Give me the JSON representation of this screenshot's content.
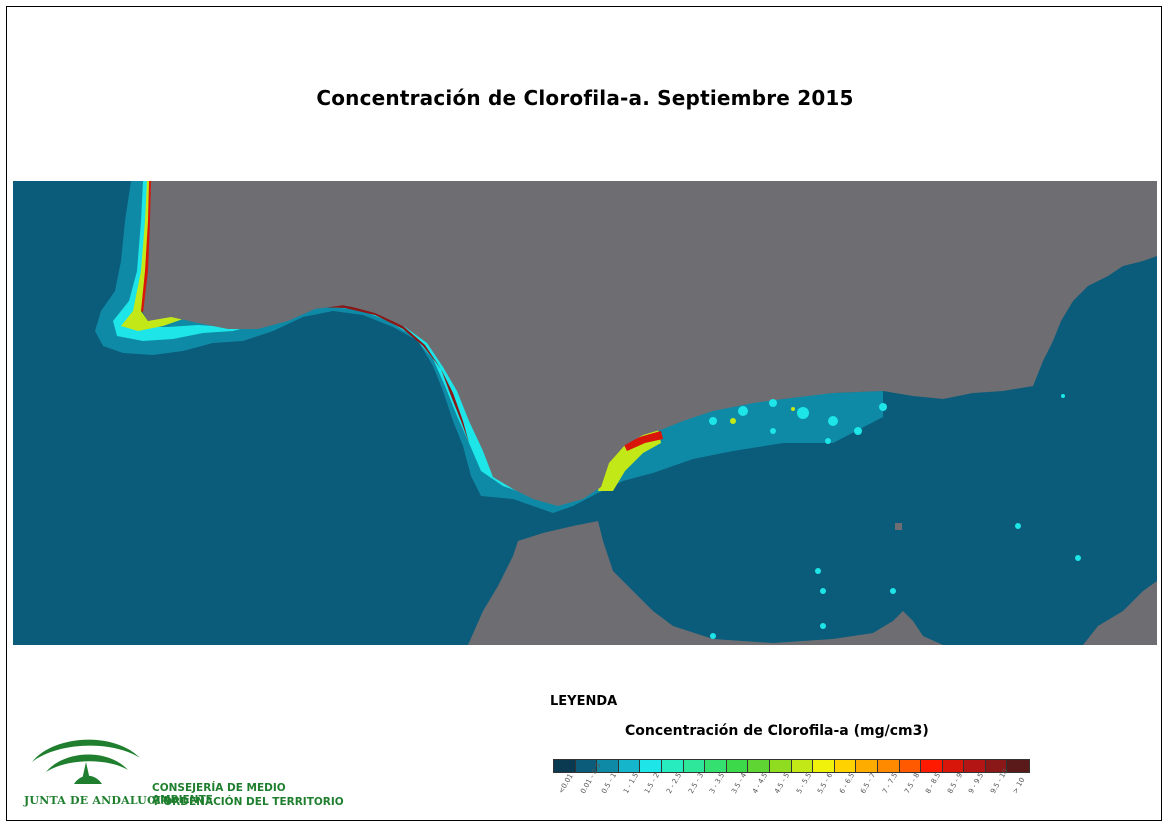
{
  "title": "Concentración de Clorofila-a. Septiembre 2015",
  "legend": {
    "heading": "LEYENDA",
    "subtitle": "Concentración de Clorofila-a (mg/cm3)",
    "classes": [
      {
        "label": "<0.01",
        "color": "#0a3a52"
      },
      {
        "label": "0.01 - 0.5",
        "color": "#0b5b7a"
      },
      {
        "label": "0.5 - 1",
        "color": "#0f8aa6"
      },
      {
        "label": "1 - 1.5",
        "color": "#15b5cc"
      },
      {
        "label": "1.5 - 2",
        "color": "#1de5e8"
      },
      {
        "label": "2 - 2.5",
        "color": "#27ecc0"
      },
      {
        "label": "2.5 - 3",
        "color": "#2ee79a"
      },
      {
        "label": "3 - 3.5",
        "color": "#34e070"
      },
      {
        "label": "3.5 - 4",
        "color": "#3cd94a"
      },
      {
        "label": "4 - 4.5",
        "color": "#5ed532"
      },
      {
        "label": "4.5 - 5",
        "color": "#8fdc20"
      },
      {
        "label": "5 - 5.5",
        "color": "#c2e818"
      },
      {
        "label": "5.5 - 6",
        "color": "#f1f20c"
      },
      {
        "label": "6 - 6.5",
        "color": "#ffd200"
      },
      {
        "label": "6.5 - 7",
        "color": "#ffac00"
      },
      {
        "label": "7 - 7.5",
        "color": "#ff8a00"
      },
      {
        "label": "7.5 - 8",
        "color": "#ff5a00"
      },
      {
        "label": "8 - 8.5",
        "color": "#ff1a00"
      },
      {
        "label": "8.5 - 9",
        "color": "#d8160a"
      },
      {
        "label": "9 - 9.5",
        "color": "#b31414"
      },
      {
        "label": "9.5 - 10",
        "color": "#8b1818"
      },
      {
        "label": "> 10",
        "color": "#5a1a1a"
      }
    ]
  },
  "logo": {
    "organization": "JUNTA DE ANDALUCIA",
    "department_line1": "CONSEJERÍA DE MEDIO AMBIENTE",
    "department_line2": "Y ORDENACIÓN DEL TERRITORIO",
    "brand_color": "#1f7f2e"
  },
  "map": {
    "land_color": "#6e6e72",
    "sea_color": "#0b5b7a"
  }
}
